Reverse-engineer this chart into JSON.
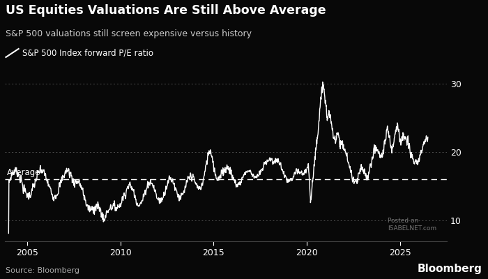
{
  "title": "US Equities Valuations Are Still Above Average",
  "subtitle": "S&P 500 valuations still screen expensive versus history",
  "legend_label": "S&P 500 Index forward P/E ratio",
  "source": "Source: Bloomberg",
  "watermark": "Bloomberg",
  "background_color": "#080808",
  "text_color": "#ffffff",
  "line_color": "#ffffff",
  "dotted_line_color": "#606060",
  "average_line_color": "#ffffff",
  "average_value": 16.0,
  "yticks": [
    10,
    20,
    30
  ],
  "xticks": [
    2005,
    2010,
    2015,
    2020,
    2025
  ],
  "ylim": [
    7,
    33
  ],
  "xlim": [
    2003.8,
    2027.5
  ],
  "average_label": "Average"
}
